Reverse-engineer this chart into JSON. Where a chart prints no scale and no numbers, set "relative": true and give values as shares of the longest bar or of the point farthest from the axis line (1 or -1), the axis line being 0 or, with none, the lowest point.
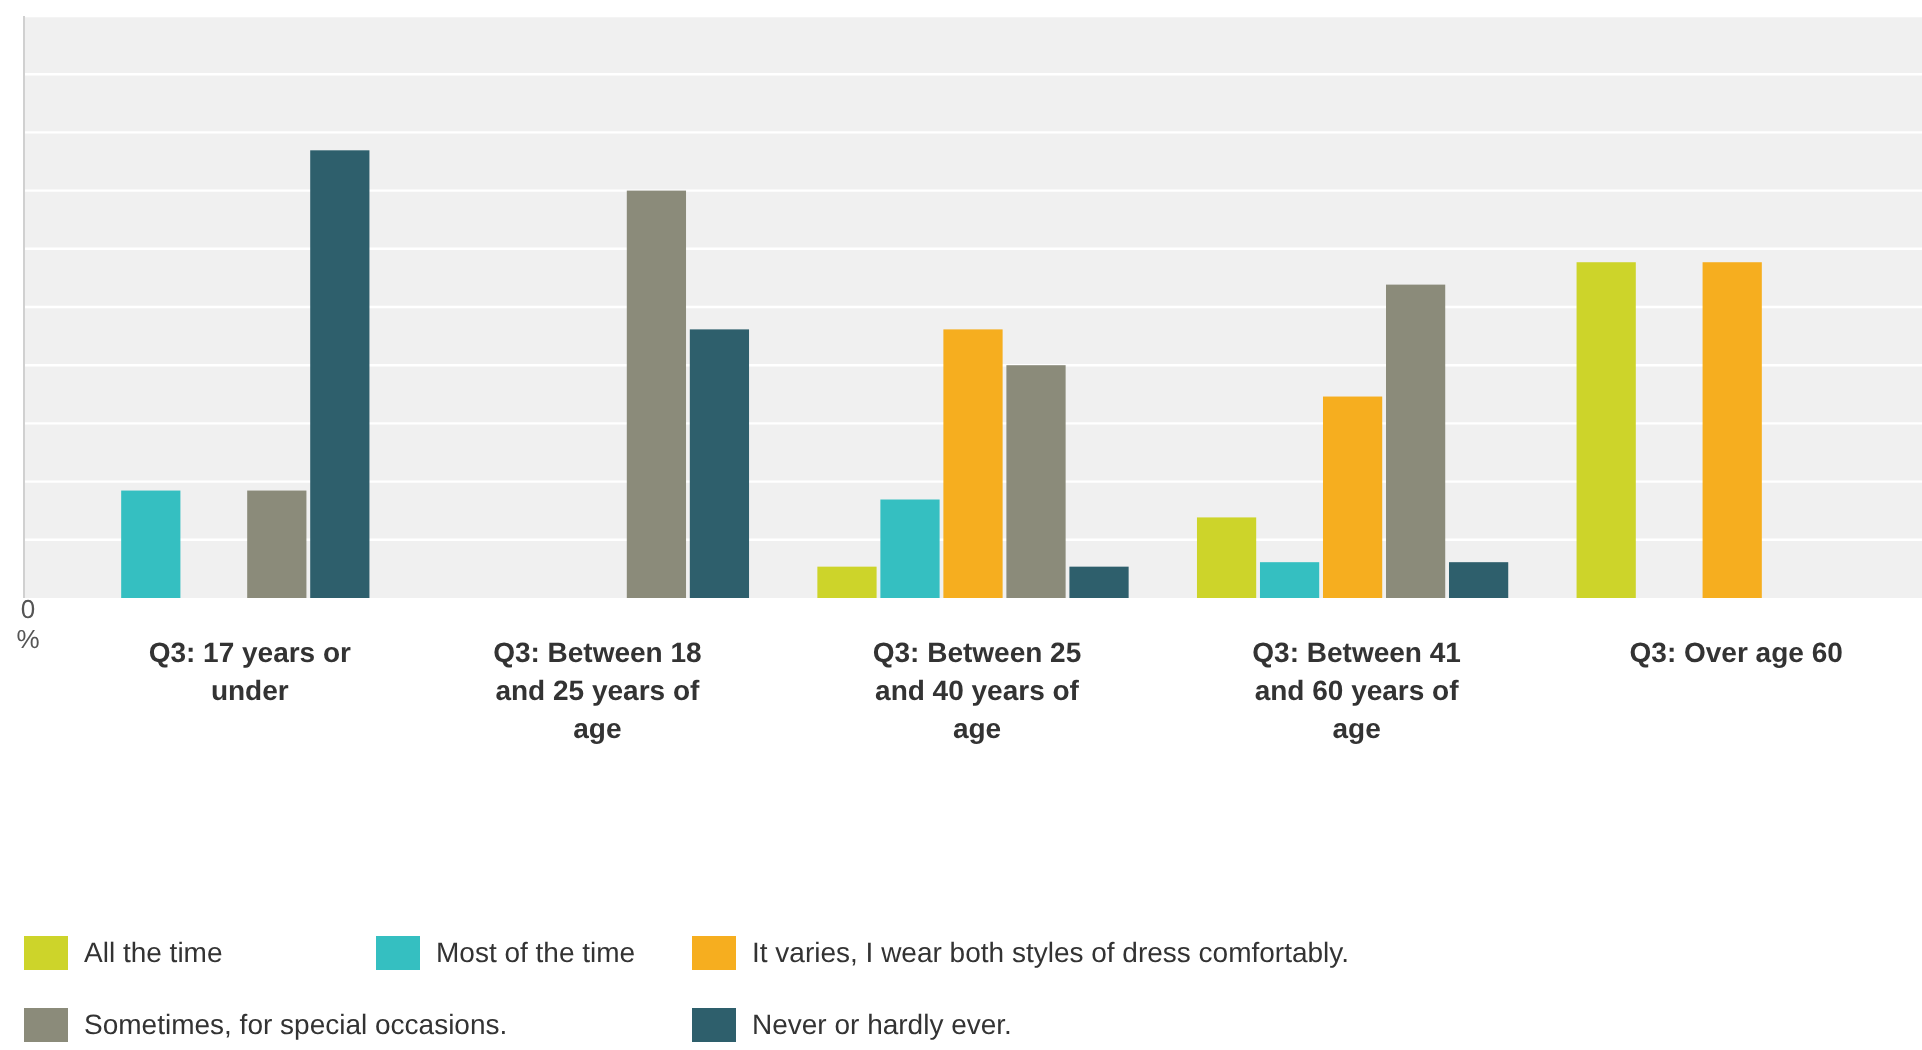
{
  "chart_data": {
    "type": "bar",
    "relative": true,
    "grid": true,
    "legend": "bottom",
    "categories": [
      "Q3: 17 years or under",
      "Q3: Between 18 and 25 years of age",
      "Q3: Between 25 and 40 years of age",
      "Q3: Between 41 and 60 years of age",
      "Q3: Over age 60"
    ],
    "series": [
      {
        "name": "All the time",
        "color": "#cdd42a",
        "values": [
          null,
          null,
          0.07,
          0.18,
          0.75
        ]
      },
      {
        "name": "Most of the time",
        "color": "#35bfc1",
        "values": [
          0.24,
          null,
          0.22,
          0.08,
          null
        ]
      },
      {
        "name": "It varies, I wear both styles of dress comfortably.",
        "color": "#f6ae1f",
        "values": [
          null,
          null,
          0.6,
          0.45,
          0.75
        ]
      },
      {
        "name": "Sometimes, for special occasions.",
        "color": "#8b8b7a",
        "values": [
          0.24,
          0.91,
          0.52,
          0.7,
          null
        ]
      },
      {
        "name": "Never or hardly ever.",
        "color": "#2e5f6c",
        "values": [
          1,
          0.6,
          0.07,
          0.08,
          null
        ]
      }
    ],
    "annotations": [
      "0 %"
    ]
  }
}
